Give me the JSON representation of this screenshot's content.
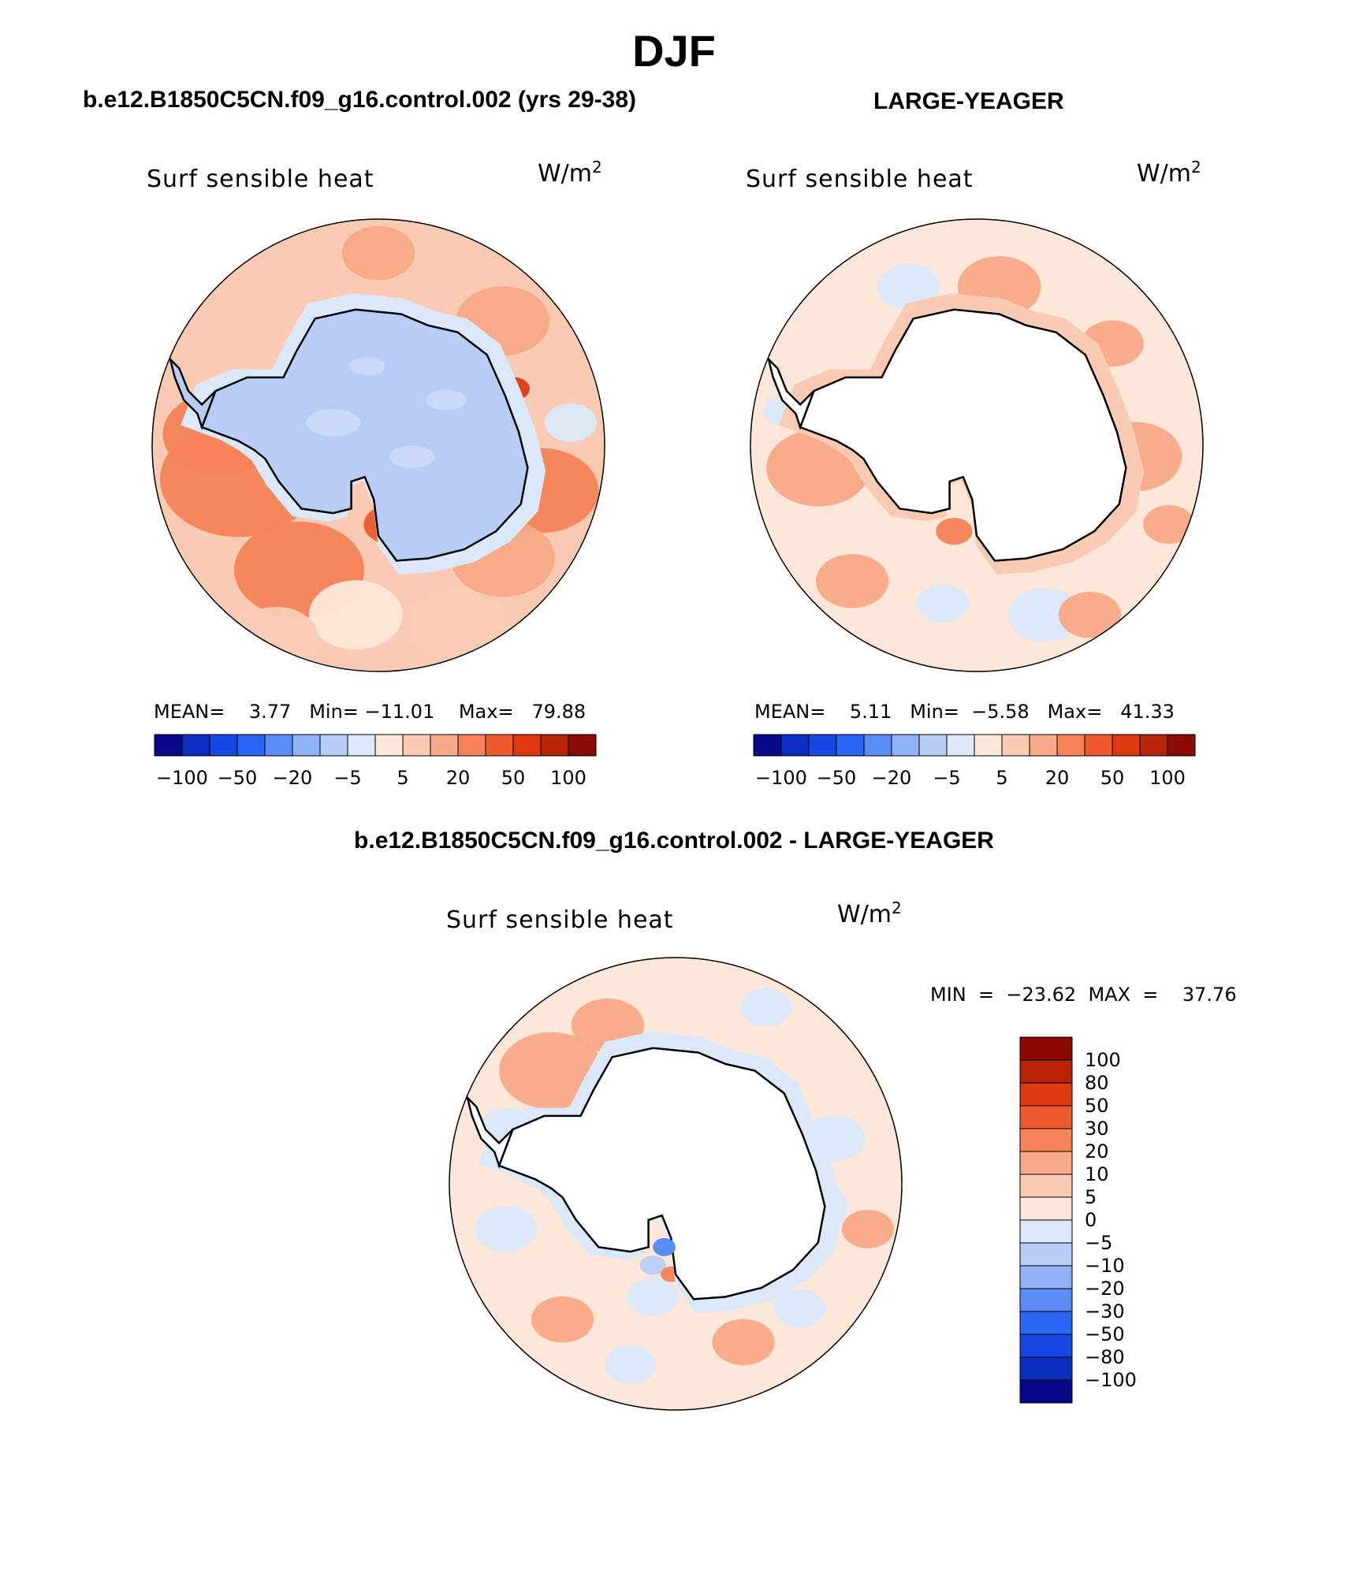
{
  "title": "DJF",
  "colors": {
    "levels": [
      "#08088a",
      "#0a2ec0",
      "#1649e4",
      "#2a66f4",
      "#5a8cf6",
      "#8fb2f6",
      "#b8cdf6",
      "#dbe8fa",
      "#fde7d8",
      "#fbcab3",
      "#f8a987",
      "#f68358",
      "#ee5a2e",
      "#dd3a12",
      "#b82406",
      "#8a0a04"
    ],
    "ocean_cold": "#dbe8fa",
    "ocean_warm_light": "#fde7d8",
    "ocean_warm": "#fbcab3",
    "ocean_warmer": "#f8a987",
    "antarctica_blue": "#b8cdf6",
    "antarctica_white": "#ffffff"
  },
  "panels": [
    {
      "title": "b.e12.B1850C5CN.f09_g16.control.002 (yrs 29-38)",
      "variable": "Surf  sensible  heat",
      "units_base": "W/m",
      "units_exp": "2",
      "stats_text": "MEAN=    3.77   Min= −11.01    Max=   79.88",
      "colorbar_labels": [
        "−100",
        "−50",
        "−20",
        "−5",
        "5",
        "20",
        "50",
        "100"
      ]
    },
    {
      "title": "LARGE-YEAGER",
      "variable": "Surf  sensible  heat",
      "units_base": "W/m",
      "units_exp": "2",
      "stats_text": "MEAN=    5.11   Min=  −5.58   Max=   41.33",
      "colorbar_labels": [
        "−100",
        "−50",
        "−20",
        "−5",
        "5",
        "20",
        "50",
        "100"
      ]
    },
    {
      "title": "b.e12.B1850C5CN.f09_g16.control.002 - LARGE-YEAGER",
      "variable": "Surf  sensible  heat",
      "units_base": "W/m",
      "units_exp": "2",
      "stats_text": "MIN  =  −23.62  MAX  =    37.76",
      "colorbar_labels": [
        "100",
        "80",
        "50",
        "30",
        "20",
        "10",
        "5",
        "0",
        "−5",
        "−10",
        "−20",
        "−30",
        "−50",
        "−80",
        "−100"
      ]
    }
  ],
  "chart_data": [
    {
      "type": "heatmap",
      "title": "b.e12.B1850C5CN.f09_g16.control.002 (yrs 29-38)",
      "subtitle": "Surf  sensible  heat",
      "units": "W/m2",
      "projection": "south-polar stereographic",
      "mean": 3.77,
      "min": -11.01,
      "max": 79.88,
      "contour_levels": [
        -100,
        -80,
        -50,
        -30,
        -20,
        -10,
        -5,
        0,
        5,
        10,
        20,
        30,
        50,
        80,
        100
      ],
      "colorbar_tick_labels": [
        "−100",
        "−50",
        "−20",
        "−5",
        "5",
        "20",
        "50",
        "100"
      ],
      "colorbar_orientation": "horizontal"
    },
    {
      "type": "heatmap",
      "title": "LARGE-YEAGER",
      "subtitle": "Surf  sensible  heat",
      "units": "W/m2",
      "projection": "south-polar stereographic",
      "mean": 5.11,
      "min": -5.58,
      "max": 41.33,
      "contour_levels": [
        -100,
        -80,
        -50,
        -30,
        -20,
        -10,
        -5,
        0,
        5,
        10,
        20,
        30,
        50,
        80,
        100
      ],
      "colorbar_tick_labels": [
        "−100",
        "−50",
        "−20",
        "−5",
        "5",
        "20",
        "50",
        "100"
      ],
      "colorbar_orientation": "horizontal"
    },
    {
      "type": "heatmap",
      "title": "b.e12.B1850C5CN.f09_g16.control.002 - LARGE-YEAGER",
      "subtitle": "Surf  sensible  heat",
      "units": "W/m2",
      "projection": "south-polar stereographic",
      "min": -23.62,
      "max": 37.76,
      "contour_levels": [
        -100,
        -80,
        -50,
        -30,
        -20,
        -10,
        -5,
        0,
        5,
        10,
        20,
        30,
        50,
        80,
        100
      ],
      "colorbar_tick_labels": [
        "100",
        "80",
        "50",
        "30",
        "20",
        "10",
        "5",
        "0",
        "−5",
        "−10",
        "−20",
        "−30",
        "−50",
        "−80",
        "−100"
      ],
      "colorbar_orientation": "vertical"
    }
  ]
}
